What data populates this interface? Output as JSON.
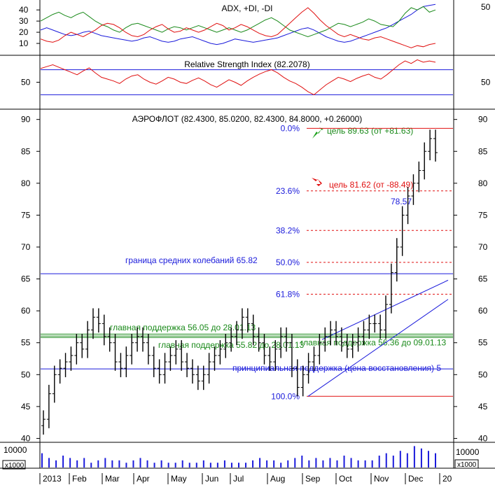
{
  "colors": {
    "background": "#ffffff",
    "price": "#000000",
    "adx": "#1a1adb",
    "plus_di": "#1a8a1a",
    "minus_di": "#e01010",
    "rsi": "#e01010",
    "fib": "#e01010",
    "support": "#1a8a1a",
    "principal": "#1a1adb"
  },
  "chart_data": [
    {
      "type": "line",
      "title": "ADX, +DI, -DI",
      "y_ticks": [
        10,
        20,
        30,
        40
      ],
      "y_ticks_right": [
        50
      ],
      "ylim": [
        0,
        47
      ],
      "series": [
        {
          "name": "ADX",
          "values": [
            22,
            24,
            22,
            20,
            18,
            17,
            18,
            20,
            21,
            19,
            17,
            16,
            15,
            14,
            13,
            12,
            13,
            15,
            16,
            14,
            12,
            11,
            12,
            14,
            15,
            16,
            14,
            12,
            10,
            9,
            10,
            12,
            14,
            13,
            12,
            11,
            12,
            13,
            14,
            15,
            17,
            19,
            21,
            23,
            24,
            22,
            19,
            16,
            14,
            12,
            11,
            12,
            14,
            16,
            18,
            20,
            22,
            24,
            27,
            30,
            33,
            36,
            40,
            43,
            44,
            45
          ]
        },
        {
          "name": "+DI",
          "values": [
            30,
            33,
            36,
            38,
            35,
            33,
            36,
            38,
            34,
            30,
            27,
            25,
            22,
            20,
            24,
            27,
            28,
            26,
            24,
            22,
            20,
            23,
            25,
            24,
            22,
            24,
            26,
            24,
            22,
            20,
            22,
            24,
            22,
            20,
            22,
            25,
            28,
            31,
            33,
            30,
            26,
            22,
            20,
            18,
            16,
            18,
            20,
            22,
            25,
            28,
            27,
            25,
            27,
            29,
            32,
            30,
            27,
            26,
            25,
            30,
            37,
            42,
            40,
            43,
            38,
            40
          ]
        },
        {
          "name": "-DI",
          "values": [
            14,
            12,
            11,
            13,
            17,
            20,
            18,
            16,
            19,
            22,
            26,
            28,
            27,
            24,
            20,
            17,
            16,
            18,
            22,
            25,
            27,
            23,
            20,
            21,
            24,
            22,
            20,
            22,
            25,
            28,
            26,
            22,
            24,
            27,
            25,
            22,
            19,
            17,
            16,
            18,
            23,
            28,
            33,
            38,
            42,
            37,
            31,
            26,
            22,
            18,
            16,
            18,
            16,
            14,
            13,
            15,
            16,
            14,
            12,
            10,
            8,
            6,
            8,
            7,
            9,
            10
          ]
        }
      ]
    },
    {
      "type": "line",
      "title": "Relative Strength Index (82.2078)",
      "y_ticks": [
        50
      ],
      "y_ticks_right": [
        50
      ],
      "ylim": [
        8,
        92
      ],
      "levels": [
        70,
        30
      ],
      "series": [
        {
          "name": "RSI",
          "values": [
            72,
            75,
            78,
            74,
            70,
            66,
            62,
            68,
            73,
            65,
            58,
            55,
            52,
            48,
            55,
            60,
            62,
            55,
            50,
            47,
            52,
            58,
            55,
            50,
            48,
            53,
            57,
            52,
            46,
            42,
            48,
            54,
            50,
            45,
            52,
            58,
            63,
            67,
            70,
            65,
            58,
            52,
            48,
            42,
            35,
            30,
            38,
            46,
            52,
            58,
            55,
            51,
            56,
            60,
            63,
            58,
            55,
            62,
            70,
            78,
            84,
            80,
            86,
            82,
            84,
            82
          ]
        }
      ]
    },
    {
      "type": "candlestick",
      "title": "АЭРОФЛОТ (82.4300, 85.0200, 82.4300, 84.8000, +0.26000)",
      "y_ticks": [
        40,
        45,
        50,
        55,
        60,
        65,
        70,
        75,
        80,
        85,
        90
      ],
      "ylim": [
        39.5,
        91.5
      ],
      "x_labels": [
        "2013",
        "Feb",
        "Mar",
        "Apr",
        "May",
        "Jun",
        "Jul",
        "Aug",
        "Sep",
        "Oct",
        "Nov",
        "Dec",
        "20"
      ],
      "close": [
        43,
        47,
        50,
        51,
        52,
        53,
        55,
        54,
        57,
        59,
        58,
        56,
        55,
        52,
        51,
        53,
        55,
        56,
        55,
        53,
        51,
        50,
        52,
        53,
        54,
        52,
        51,
        50,
        49,
        50,
        52,
        53,
        54,
        55,
        56,
        57,
        59,
        58,
        56,
        55,
        53,
        52,
        54,
        56,
        55,
        51,
        48,
        50,
        52,
        53,
        55,
        56,
        57,
        56,
        55,
        54,
        55,
        56,
        57,
        58,
        58,
        57,
        61,
        66,
        70,
        75,
        78,
        80,
        82,
        85,
        87,
        84.8
      ],
      "fibonacci": [
        {
          "label": "0.0%",
          "value": 88.6
        },
        {
          "label": "23.6%",
          "value": 78.8
        },
        {
          "label": "38.2%",
          "value": 72.6
        },
        {
          "label": "50.0%",
          "value": 67.6
        },
        {
          "label": "61.8%",
          "value": 62.6
        },
        {
          "label": "100.0%",
          "value": 46.6
        }
      ],
      "horizontal_lines": [
        {
          "label": "граница средних колебаний 65.82",
          "value": 65.82,
          "color": "blue"
        },
        {
          "label": "главная поддержка 56.05 до 28.01.13",
          "value": 56.05,
          "color": "green"
        },
        {
          "label": "главная поддержка 55.82 до 28.01.13",
          "value": 55.82,
          "color": "green"
        },
        {
          "label": "главная поддержка 56.36 до 09.01.13",
          "value": 56.36,
          "color": "green"
        },
        {
          "label": "принципиальная поддержка (цена восстановления) 5",
          "value": 50.9,
          "color": "blue"
        }
      ],
      "annotations": [
        {
          "text": "цель 89.63 (от +81.63)",
          "direction": "up"
        },
        {
          "text": "цель 81.62 (от -88.49)",
          "direction": "down"
        },
        {
          "text": "78.57"
        }
      ]
    },
    {
      "type": "bar",
      "title": "",
      "y_tick": "10000",
      "unit_label": "x1000",
      "values": [
        6,
        4,
        3,
        5,
        4,
        3,
        4,
        2,
        3,
        4,
        3,
        3,
        2,
        3,
        4,
        3,
        2,
        3,
        2,
        2,
        3,
        2,
        2,
        3,
        2,
        2,
        3,
        2,
        2,
        2,
        3,
        4,
        3,
        3,
        2,
        3,
        4,
        5,
        3,
        4,
        3,
        4,
        3,
        5,
        4,
        3,
        3,
        3,
        5,
        6,
        5,
        7,
        6,
        9,
        8,
        7,
        6
      ]
    }
  ]
}
